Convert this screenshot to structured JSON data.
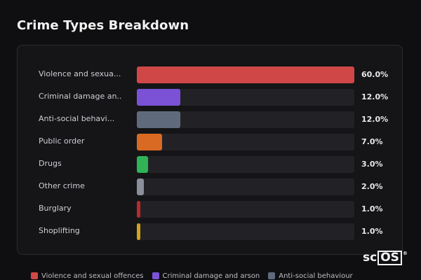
{
  "title": "Crime Types Breakdown",
  "rows": [
    {
      "label": "Violence and sexua...",
      "percent_text": "60.0%",
      "value": 60.0,
      "color": "#d04747"
    },
    {
      "label": "Criminal damage an...",
      "percent_text": "12.0%",
      "value": 12.0,
      "color": "#7b52d6"
    },
    {
      "label": "Anti-social behavi...",
      "percent_text": "12.0%",
      "value": 12.0,
      "color": "#5f6b7d"
    },
    {
      "label": "Public order",
      "percent_text": "7.0%",
      "value": 7.0,
      "color": "#d96a23"
    },
    {
      "label": "Drugs",
      "percent_text": "3.0%",
      "value": 3.0,
      "color": "#2fb356"
    },
    {
      "label": "Other crime",
      "percent_text": "2.0%",
      "value": 2.0,
      "color": "#8a8f9a"
    },
    {
      "label": "Burglary",
      "percent_text": "1.0%",
      "value": 1.0,
      "color": "#b82b2b"
    },
    {
      "label": "Shoplifting",
      "percent_text": "1.0%",
      "value": 1.0,
      "color": "#d4a21f"
    }
  ],
  "legend": [
    {
      "label": "Violence and sexual offences",
      "color": "#d04747"
    },
    {
      "label": "Criminal damage and arson",
      "color": "#7b52d6"
    },
    {
      "label": "Anti-social behaviour",
      "color": "#5f6b7d"
    }
  ],
  "logo": {
    "prefix": "sc",
    "boxed": "OS",
    "mark": "®"
  }
}
